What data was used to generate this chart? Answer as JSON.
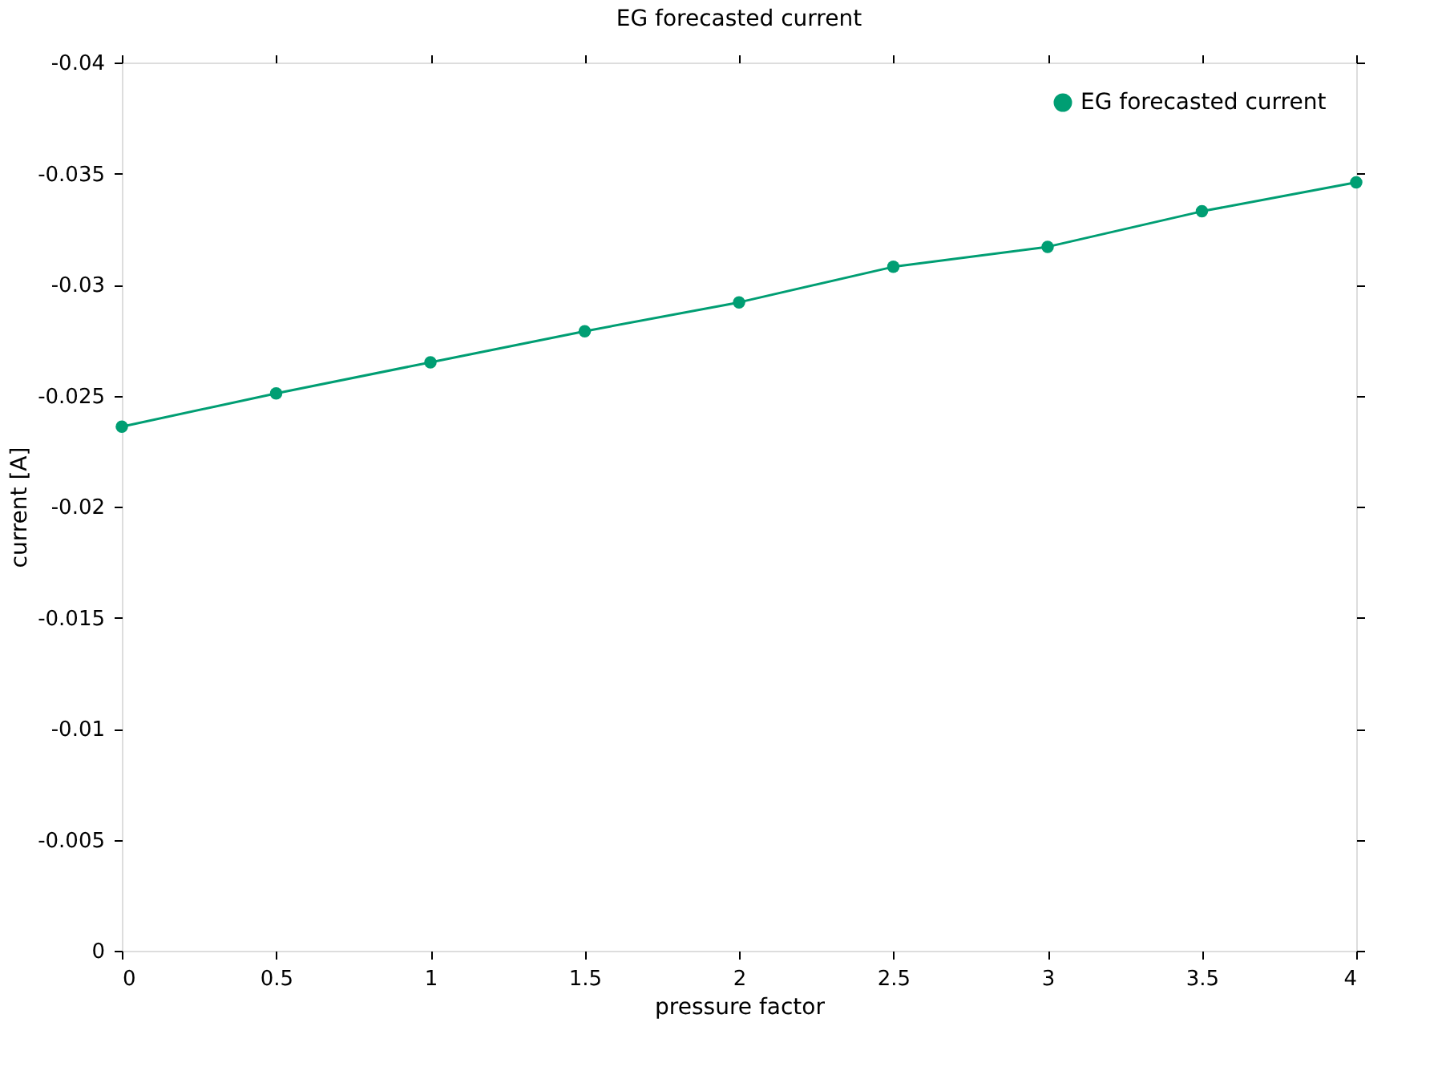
{
  "chart_data": {
    "type": "line",
    "title": "EG forecasted current",
    "xlabel": "pressure factor",
    "ylabel": "current [A]",
    "x": [
      0,
      0.5,
      1,
      1.5,
      2,
      2.5,
      3,
      3.5,
      4
    ],
    "series": [
      {
        "name": "EG forecasted current",
        "color": "#009e73",
        "values": [
          -0.0236,
          -0.0251,
          -0.0265,
          -0.0279,
          -0.0292,
          -0.0308,
          -0.0317,
          -0.0333,
          -0.0346
        ]
      }
    ],
    "xlim": [
      0,
      4
    ],
    "xticks": [
      0,
      0.5,
      1,
      1.5,
      2,
      2.5,
      3,
      3.5,
      4
    ],
    "ylim": [
      0,
      -0.04
    ],
    "yticks": [
      0,
      -0.005,
      -0.01,
      -0.015,
      -0.02,
      -0.025,
      -0.03,
      -0.035,
      -0.04
    ],
    "legend": "top right",
    "marker": "circle",
    "line_style": "solid",
    "grid": false
  }
}
